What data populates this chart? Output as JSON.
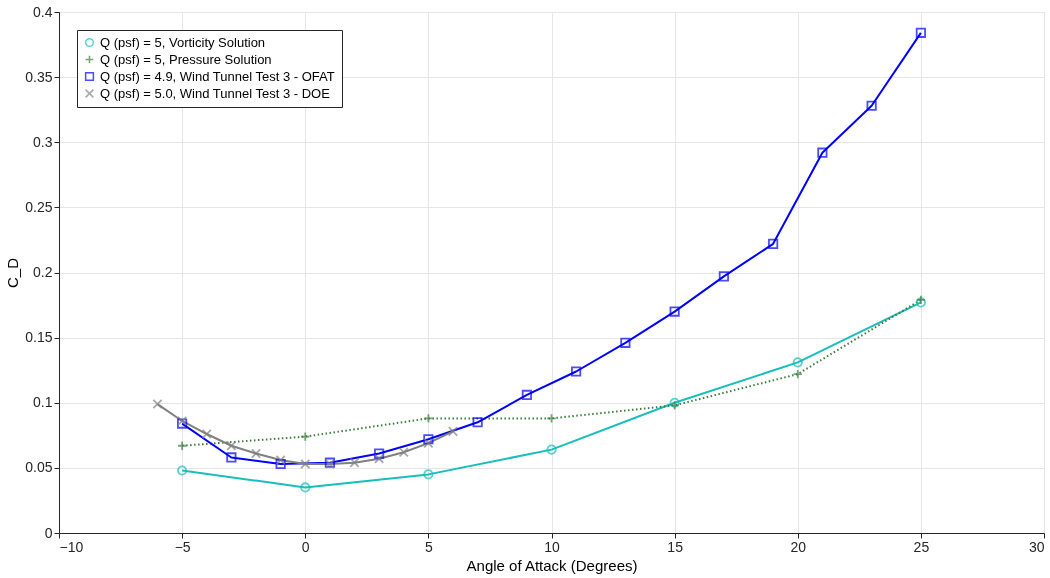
{
  "chart_data": {
    "type": "line",
    "xlabel": "Angle of Attack (Degrees)",
    "ylabel": "C_D",
    "xlim": [
      -10,
      30
    ],
    "xticks": [
      -10,
      -5,
      0,
      5,
      10,
      15,
      20,
      25,
      30
    ],
    "ylim": [
      0,
      0.4
    ],
    "yticks": [
      0,
      0.05,
      0.1,
      0.15,
      0.2,
      0.25,
      0.3,
      0.35,
      0.4
    ],
    "grid": true,
    "legend": "top left",
    "series": [
      {
        "name": "Q (psf) = 5, Vorticity Solution",
        "color": "#17bebb",
        "marker": "circle",
        "line_style": "solid",
        "x": [
          -5,
          0,
          5,
          10,
          15,
          20,
          25
        ],
        "values": [
          0.048,
          0.035,
          0.045,
          0.064,
          0.1,
          0.131,
          0.177
        ]
      },
      {
        "name": "Q (psf) = 5, Pressure Solution",
        "color": "#3a7d3a",
        "marker": "cross",
        "line_style": "dotted",
        "x": [
          -5,
          0,
          5,
          10,
          15,
          20,
          25
        ],
        "values": [
          0.067,
          0.074,
          0.088,
          0.088,
          0.098,
          0.122,
          0.179
        ]
      },
      {
        "name": "Q (psf) = 4.9, Wind Tunnel Test 3 - OFAT",
        "color": "#0000ff",
        "marker": "square",
        "line_style": "solid",
        "x": [
          -5,
          -3,
          -1,
          1,
          3,
          5,
          7,
          9,
          11,
          13,
          15,
          17,
          19,
          21,
          23,
          25
        ],
        "values": [
          0.084,
          0.058,
          0.053,
          0.054,
          0.061,
          0.072,
          0.085,
          0.106,
          0.124,
          0.146,
          0.17,
          0.197,
          0.222,
          0.292,
          0.328,
          0.384
        ]
      },
      {
        "name": "Q (psf) = 5.0, Wind Tunnel Test 3 - DOE",
        "color": "#808080",
        "marker": "x",
        "line_style": "solid",
        "x": [
          -6,
          -5,
          -4,
          -3,
          -2,
          -1,
          0,
          1,
          2,
          3,
          4,
          5,
          6
        ],
        "values": [
          0.099,
          0.086,
          0.076,
          0.067,
          0.061,
          0.056,
          0.053,
          0.053,
          0.054,
          0.057,
          0.062,
          0.069,
          0.078
        ]
      }
    ]
  }
}
